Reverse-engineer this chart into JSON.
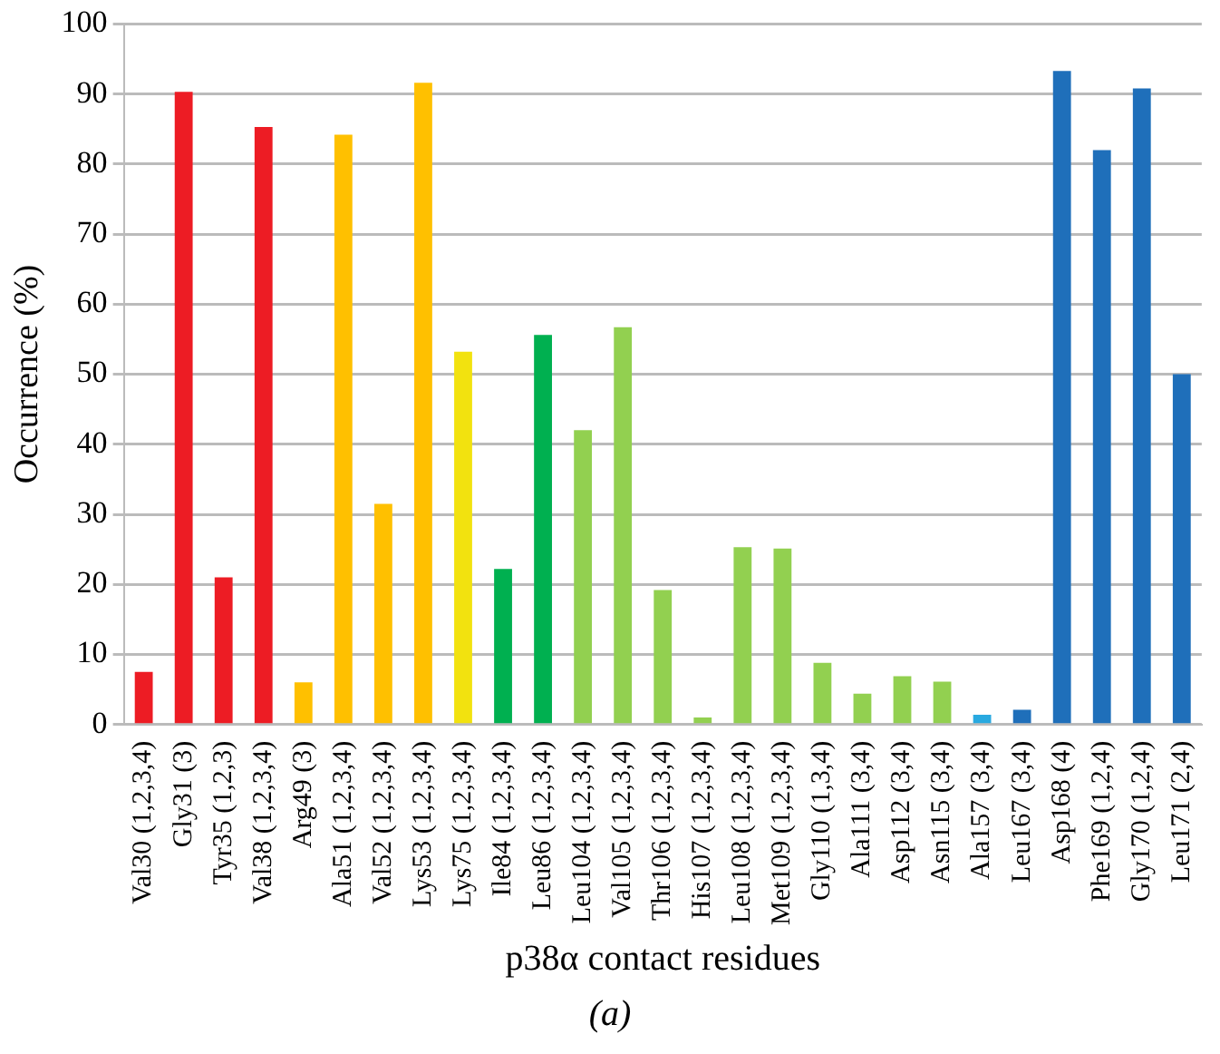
{
  "chart_data": {
    "type": "bar",
    "xlabel": "p38α contact residues",
    "ylabel": "Occurrence (%)",
    "annotations": [
      "(a)"
    ],
    "categories": [
      "Val30 (1,2,3,4)",
      "Gly31 (3)",
      "Tyr35 (1,2,3)",
      "Val38 (1,2,3,4)",
      "Arg49 (3)",
      "Ala51 (1,2,3,4)",
      "Val52 (1,2,3,4)",
      "Lys53 (1,2,3,4)",
      "Lys75 (1,2,3,4)",
      "Ile84 (1,2,3,4)",
      "Leu86 (1,2,3,4)",
      "Leu104 (1,2,3,4)",
      "Val105 (1,2,3,4)",
      "Thr106 (1,2,3,4)",
      "His107 (1,2,3,4)",
      "Leu108 (1,2,3,4)",
      "Met109 (1,2,3,4)",
      "Gly110 (1,3,4)",
      "Ala111 (3,4)",
      "Asp112 (3,4)",
      "Asn115 (3,4)",
      "Ala157 (3,4)",
      "Leu167 (3,4)",
      "Asp168 (4)",
      "Phe169 (1,2,4)",
      "Gly170 (1,2,4)",
      "Leu171 (2,4)"
    ],
    "values": [
      7.5,
      90.3,
      21,
      85.3,
      6,
      84.2,
      31.5,
      91.6,
      53.2,
      22.2,
      55.6,
      42,
      56.7,
      19.2,
      1,
      25.3,
      25.1,
      8.8,
      4.4,
      6.9,
      6.1,
      1.4,
      2.1,
      93.3,
      82,
      90.8,
      50
    ],
    "colors": [
      "#ed1c24",
      "#ed1c24",
      "#ed1c24",
      "#ed1c24",
      "#ffc000",
      "#ffc000",
      "#ffc000",
      "#ffc000",
      "#f2e20f",
      "#00b050",
      "#00b050",
      "#92d050",
      "#92d050",
      "#92d050",
      "#92d050",
      "#92d050",
      "#92d050",
      "#92d050",
      "#92d050",
      "#92d050",
      "#92d050",
      "#29a9e0",
      "#1f6fba",
      "#1f6fba",
      "#1f6fba",
      "#1f6fba",
      "#1f6fba"
    ],
    "ylim": [
      0,
      100
    ],
    "yticks": [
      0,
      10,
      20,
      30,
      40,
      50,
      60,
      70,
      80,
      90,
      100
    ],
    "grid": "y",
    "legend": false
  }
}
